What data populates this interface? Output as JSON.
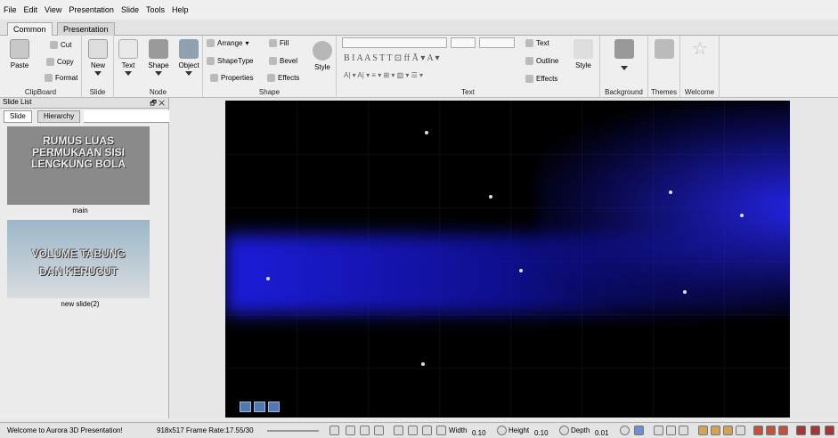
{
  "menu": [
    "File",
    "Edit",
    "View",
    "Presentation",
    "Slide",
    "Tools",
    "Help"
  ],
  "tabs": [
    "Common",
    "Presentation"
  ],
  "ribbon": {
    "clipboard": {
      "paste": "Paste",
      "cut": "Cut",
      "copy": "Copy",
      "format": "Format",
      "label": "ClipBoard"
    },
    "slide": {
      "new": "New",
      "label": "Slide"
    },
    "node": {
      "text": "Text",
      "shape": "Shape",
      "object": "Object",
      "label": "Node"
    },
    "shape": {
      "arrange": "Arrange",
      "fill": "Fill",
      "shapetype": "ShapeType",
      "bevel": "Bevel",
      "properties": "Properties",
      "effects": "Effects",
      "style": "Style",
      "label": "Shape"
    },
    "text": {
      "text": "Text",
      "outline": "Outline",
      "effects": "Effects",
      "style": "Style",
      "label": "Text",
      "format_glyphs": "B  I  A  A  S  T  T  ⊡  ff  Ā ▾ A ▾",
      "align_glyphs": "A| ▾  A| ▾  ≡ ▾  ⊞ ▾  ▥ ▾  ☰ ▾"
    },
    "background": {
      "label": "Background"
    },
    "themes": {
      "label": "Themes"
    },
    "welcome": {
      "label": "Welcome"
    }
  },
  "panel": {
    "title": "Slide List",
    "controls": "🗗 ✕",
    "tabs": [
      "Slide",
      "Hierarchy"
    ],
    "slides": [
      {
        "caption": "main",
        "text": "RUMUS LUAS PERMUKAAN SISI LENGKUNG BOLA"
      },
      {
        "caption": "new slide(2)",
        "text": "VOLUME TABUNG DAN KERUCUT"
      }
    ]
  },
  "status": {
    "welcome": "Welcome to Aurora 3D Presentation!",
    "frame": "918x517 Frame Rate:17.55/30",
    "width_label": "Width",
    "width_val": "0.10",
    "height_label": "Height",
    "height_val": "0.10",
    "depth_label": "Depth",
    "depth_val": "0.01"
  },
  "colors": {
    "stage": "#000000",
    "beam": "#2a2ae6",
    "accent": "#4f78b5"
  }
}
